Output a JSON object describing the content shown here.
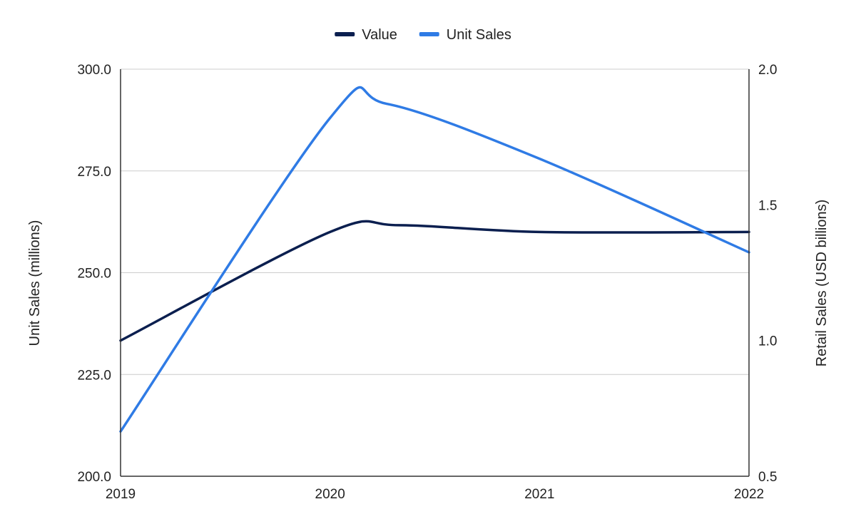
{
  "chart_data": {
    "type": "line",
    "x": [
      "2019",
      "2020",
      "2021",
      "2022"
    ],
    "series": [
      {
        "name": "Value",
        "axis": "right",
        "color": "#0b1f4f",
        "values": [
          1.0,
          1.4,
          1.4,
          1.4
        ],
        "path_points": [
          {
            "x": 2019.0,
            "y": 1.0
          },
          {
            "x": 2020.0,
            "y": 1.4
          },
          {
            "x": 2020.33,
            "y": 1.425
          },
          {
            "x": 2021.0,
            "y": 1.4
          },
          {
            "x": 2022.0,
            "y": 1.4
          }
        ]
      },
      {
        "name": "Unit Sales",
        "axis": "left",
        "color": "#2f7be5",
        "values": [
          211,
          288,
          278,
          255
        ],
        "path_points": [
          {
            "x": 2019.0,
            "y": 211
          },
          {
            "x": 2020.0,
            "y": 288
          },
          {
            "x": 2020.27,
            "y": 291.5
          },
          {
            "x": 2021.0,
            "y": 278
          },
          {
            "x": 2022.0,
            "y": 255
          }
        ]
      }
    ],
    "y_left": {
      "label": "Unit Sales (millions)",
      "ylim": [
        200,
        300
      ],
      "ticks": [
        "200.0",
        "225.0",
        "250.0",
        "275.0",
        "300.0"
      ]
    },
    "y_right": {
      "label": "Retail Sales (USD billions)",
      "ylim": [
        0.5,
        2.0
      ],
      "ticks": [
        "0.5",
        "1.0",
        "1.5",
        "2.0"
      ]
    },
    "grid": true,
    "legend_position": "top-center",
    "title": ""
  }
}
